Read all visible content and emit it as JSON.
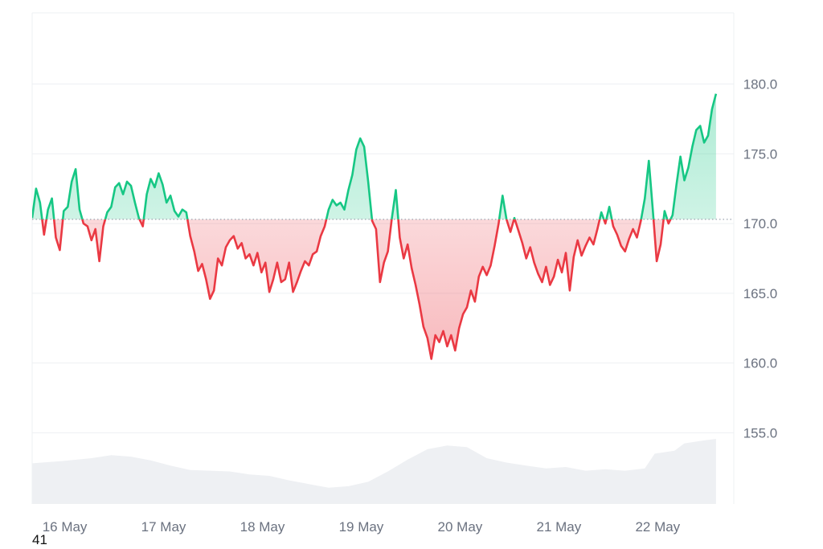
{
  "chart_data": {
    "type": "area",
    "baseline": 170.3,
    "x_ticks": [
      "16 May",
      "17 May",
      "18 May",
      "19 May",
      "20 May",
      "21 May",
      "22 May"
    ],
    "y_ticks": [
      155.0,
      160.0,
      165.0,
      170.0,
      175.0,
      180.0
    ],
    "ylim": [
      149.9,
      185.1
    ],
    "xlim": [
      0,
      7.1
    ],
    "colors": {
      "up": "#16c784",
      "down": "#ea3943",
      "volume": "#eef0f3",
      "grid": "#eef0f3"
    },
    "points": [
      [
        0.0,
        170.4
      ],
      [
        0.04,
        172.5
      ],
      [
        0.08,
        171.5
      ],
      [
        0.12,
        169.2
      ],
      [
        0.16,
        171.0
      ],
      [
        0.2,
        171.8
      ],
      [
        0.24,
        169.0
      ],
      [
        0.28,
        168.1
      ],
      [
        0.32,
        170.9
      ],
      [
        0.36,
        171.2
      ],
      [
        0.4,
        173.0
      ],
      [
        0.44,
        173.9
      ],
      [
        0.48,
        171.0
      ],
      [
        0.52,
        170.0
      ],
      [
        0.56,
        169.8
      ],
      [
        0.6,
        168.8
      ],
      [
        0.64,
        169.6
      ],
      [
        0.68,
        167.3
      ],
      [
        0.72,
        169.8
      ],
      [
        0.76,
        170.8
      ],
      [
        0.8,
        171.2
      ],
      [
        0.84,
        172.6
      ],
      [
        0.88,
        172.9
      ],
      [
        0.92,
        172.1
      ],
      [
        0.96,
        173.0
      ],
      [
        1.0,
        172.7
      ],
      [
        1.04,
        171.5
      ],
      [
        1.08,
        170.4
      ],
      [
        1.12,
        169.8
      ],
      [
        1.16,
        172.1
      ],
      [
        1.2,
        173.2
      ],
      [
        1.24,
        172.6
      ],
      [
        1.28,
        173.6
      ],
      [
        1.32,
        172.8
      ],
      [
        1.36,
        171.5
      ],
      [
        1.4,
        172.0
      ],
      [
        1.44,
        170.9
      ],
      [
        1.48,
        170.5
      ],
      [
        1.52,
        171.0
      ],
      [
        1.56,
        170.8
      ],
      [
        1.6,
        169.1
      ],
      [
        1.64,
        168.0
      ],
      [
        1.68,
        166.6
      ],
      [
        1.72,
        167.1
      ],
      [
        1.76,
        166.0
      ],
      [
        1.8,
        164.6
      ],
      [
        1.84,
        165.2
      ],
      [
        1.88,
        167.5
      ],
      [
        1.92,
        167.0
      ],
      [
        1.96,
        168.3
      ],
      [
        2.0,
        168.8
      ],
      [
        2.04,
        169.1
      ],
      [
        2.08,
        168.2
      ],
      [
        2.12,
        168.6
      ],
      [
        2.16,
        167.5
      ],
      [
        2.2,
        167.8
      ],
      [
        2.24,
        167.0
      ],
      [
        2.28,
        167.9
      ],
      [
        2.32,
        166.5
      ],
      [
        2.36,
        167.2
      ],
      [
        2.4,
        165.1
      ],
      [
        2.44,
        166.0
      ],
      [
        2.48,
        167.2
      ],
      [
        2.52,
        165.8
      ],
      [
        2.56,
        166.0
      ],
      [
        2.6,
        167.2
      ],
      [
        2.64,
        165.1
      ],
      [
        2.68,
        165.8
      ],
      [
        2.72,
        166.6
      ],
      [
        2.76,
        167.3
      ],
      [
        2.8,
        167.0
      ],
      [
        2.84,
        167.8
      ],
      [
        2.88,
        168.0
      ],
      [
        2.92,
        169.1
      ],
      [
        2.96,
        169.8
      ],
      [
        3.0,
        171.0
      ],
      [
        3.04,
        171.7
      ],
      [
        3.08,
        171.3
      ],
      [
        3.12,
        171.5
      ],
      [
        3.16,
        171.0
      ],
      [
        3.2,
        172.4
      ],
      [
        3.24,
        173.5
      ],
      [
        3.28,
        175.3
      ],
      [
        3.32,
        176.1
      ],
      [
        3.36,
        175.5
      ],
      [
        3.4,
        173.0
      ],
      [
        3.44,
        170.2
      ],
      [
        3.48,
        169.6
      ],
      [
        3.52,
        165.8
      ],
      [
        3.56,
        167.2
      ],
      [
        3.6,
        168.0
      ],
      [
        3.64,
        170.4
      ],
      [
        3.68,
        172.4
      ],
      [
        3.72,
        169.0
      ],
      [
        3.76,
        167.5
      ],
      [
        3.8,
        168.5
      ],
      [
        3.84,
        166.8
      ],
      [
        3.88,
        165.6
      ],
      [
        3.92,
        164.2
      ],
      [
        3.96,
        162.6
      ],
      [
        4.0,
        161.8
      ],
      [
        4.04,
        160.3
      ],
      [
        4.08,
        162.0
      ],
      [
        4.12,
        161.5
      ],
      [
        4.16,
        162.3
      ],
      [
        4.2,
        161.2
      ],
      [
        4.24,
        162.0
      ],
      [
        4.28,
        160.9
      ],
      [
        4.32,
        162.5
      ],
      [
        4.36,
        163.5
      ],
      [
        4.4,
        164.0
      ],
      [
        4.44,
        165.2
      ],
      [
        4.48,
        164.4
      ],
      [
        4.52,
        166.2
      ],
      [
        4.56,
        166.9
      ],
      [
        4.6,
        166.3
      ],
      [
        4.64,
        167.0
      ],
      [
        4.68,
        168.4
      ],
      [
        4.72,
        170.0
      ],
      [
        4.76,
        172.0
      ],
      [
        4.8,
        170.3
      ],
      [
        4.84,
        169.4
      ],
      [
        4.88,
        170.4
      ],
      [
        4.92,
        169.5
      ],
      [
        4.96,
        168.6
      ],
      [
        5.0,
        167.5
      ],
      [
        5.04,
        168.3
      ],
      [
        5.08,
        167.2
      ],
      [
        5.12,
        166.4
      ],
      [
        5.16,
        165.8
      ],
      [
        5.2,
        166.9
      ],
      [
        5.24,
        165.6
      ],
      [
        5.28,
        166.2
      ],
      [
        5.32,
        167.4
      ],
      [
        5.36,
        166.5
      ],
      [
        5.4,
        167.9
      ],
      [
        5.44,
        165.2
      ],
      [
        5.48,
        167.6
      ],
      [
        5.52,
        168.8
      ],
      [
        5.56,
        167.7
      ],
      [
        5.6,
        168.4
      ],
      [
        5.64,
        169.0
      ],
      [
        5.68,
        168.5
      ],
      [
        5.72,
        169.6
      ],
      [
        5.76,
        170.8
      ],
      [
        5.8,
        170.0
      ],
      [
        5.84,
        171.2
      ],
      [
        5.88,
        169.8
      ],
      [
        5.92,
        169.2
      ],
      [
        5.96,
        168.4
      ],
      [
        6.0,
        168.0
      ],
      [
        6.04,
        168.9
      ],
      [
        6.08,
        169.6
      ],
      [
        6.12,
        169.0
      ],
      [
        6.16,
        170.2
      ],
      [
        6.2,
        171.8
      ],
      [
        6.24,
        174.5
      ],
      [
        6.28,
        171.0
      ],
      [
        6.32,
        167.3
      ],
      [
        6.36,
        168.5
      ],
      [
        6.4,
        170.9
      ],
      [
        6.44,
        170.0
      ],
      [
        6.48,
        170.6
      ],
      [
        6.52,
        172.8
      ],
      [
        6.56,
        174.8
      ],
      [
        6.6,
        173.1
      ],
      [
        6.64,
        174.0
      ],
      [
        6.68,
        175.5
      ],
      [
        6.72,
        176.7
      ],
      [
        6.76,
        177.0
      ],
      [
        6.8,
        175.8
      ],
      [
        6.84,
        176.3
      ],
      [
        6.88,
        178.2
      ],
      [
        6.92,
        179.3
      ]
    ],
    "volume": [
      [
        0.0,
        0.55
      ],
      [
        0.3,
        0.58
      ],
      [
        0.6,
        0.62
      ],
      [
        0.8,
        0.66
      ],
      [
        1.0,
        0.64
      ],
      [
        1.2,
        0.59
      ],
      [
        1.4,
        0.52
      ],
      [
        1.6,
        0.46
      ],
      [
        1.8,
        0.45
      ],
      [
        2.0,
        0.44
      ],
      [
        2.2,
        0.4
      ],
      [
        2.4,
        0.38
      ],
      [
        2.6,
        0.32
      ],
      [
        2.8,
        0.27
      ],
      [
        3.0,
        0.22
      ],
      [
        3.2,
        0.24
      ],
      [
        3.4,
        0.3
      ],
      [
        3.6,
        0.44
      ],
      [
        3.8,
        0.6
      ],
      [
        4.0,
        0.74
      ],
      [
        4.2,
        0.79
      ],
      [
        4.4,
        0.77
      ],
      [
        4.6,
        0.62
      ],
      [
        4.8,
        0.56
      ],
      [
        5.0,
        0.52
      ],
      [
        5.2,
        0.48
      ],
      [
        5.4,
        0.5
      ],
      [
        5.6,
        0.45
      ],
      [
        5.8,
        0.47
      ],
      [
        6.0,
        0.45
      ],
      [
        6.2,
        0.48
      ],
      [
        6.3,
        0.68
      ],
      [
        6.5,
        0.72
      ],
      [
        6.6,
        0.82
      ],
      [
        6.8,
        0.86
      ],
      [
        6.92,
        0.88
      ]
    ]
  },
  "footer_note": "41"
}
